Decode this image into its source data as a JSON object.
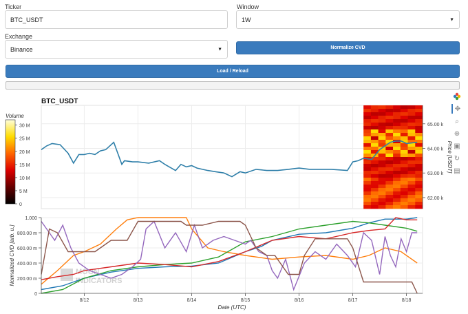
{
  "form": {
    "ticker_label": "Ticker",
    "ticker_value": "BTC_USDT",
    "window_label": "Window",
    "window_value": "1W",
    "exchange_label": "Exchange",
    "exchange_value": "Binance",
    "normalize_label": "Normalize CVD",
    "load_label": "Load / Reload",
    "progress": 0
  },
  "plot": {
    "title": "BTC_USDT",
    "colorbar": {
      "label": "Volume",
      "ticks": [
        "0",
        "5 M",
        "10 M",
        "15 M",
        "20 M",
        "25 M",
        "30 M"
      ]
    },
    "price_axis": {
      "label": "Price [USDT]",
      "ticks": [
        "62.00 k",
        "63.00 k",
        "64.00 k",
        "65.00 k"
      ]
    },
    "cvd_axis": {
      "label": "Normalized CVD [arb. u.]",
      "ticks": [
        "0",
        "200.00 m",
        "400.00 m",
        "600.00 m",
        "800.00 m",
        "1.000"
      ]
    },
    "x_axis": {
      "label": "Date (UTC)",
      "ticks": [
        "8/12",
        "8/13",
        "8/14",
        "8/15",
        "8/16",
        "8/17",
        "8/18"
      ]
    },
    "watermark_line1": "MOON",
    "watermark_line2": "INDICATORS"
  },
  "toolbar": {
    "items": [
      "bokeh-logo-icon",
      "pan-icon",
      "zoom-icon",
      "wheel-zoom-icon",
      "save-icon",
      "reset-icon",
      "hover-icon"
    ]
  },
  "colors": {
    "accent": "#3a7bbd",
    "price_line": "#2f7fa9",
    "cvd_series": [
      "#1f77b4",
      "#ff7f0e",
      "#2ca02c",
      "#d62728",
      "#9467bd",
      "#8c564b"
    ]
  },
  "chart_data": [
    {
      "type": "line",
      "name": "price",
      "x_unit": "day of August (UTC)",
      "xlim": [
        11.2,
        18.3
      ],
      "ylabel": "Price [USDT]",
      "ylim": [
        61.55,
        65.75
      ],
      "x": [
        11.2,
        11.3,
        11.4,
        11.55,
        11.7,
        11.8,
        11.9,
        12.0,
        12.1,
        12.2,
        12.3,
        12.4,
        12.55,
        12.7,
        12.75,
        12.9,
        13.0,
        13.2,
        13.4,
        13.5,
        13.7,
        13.8,
        13.9,
        14.0,
        14.1,
        14.3,
        14.45,
        14.6,
        14.75,
        14.9,
        15.0,
        15.2,
        15.4,
        15.6,
        15.8,
        16.0,
        16.2,
        16.4,
        16.6,
        16.9,
        17.0,
        17.1,
        17.2,
        17.35,
        17.5,
        17.6,
        17.7,
        17.8,
        17.9,
        18.0,
        18.2
      ],
      "y": [
        63.95,
        64.1,
        64.2,
        64.15,
        63.8,
        63.4,
        63.75,
        63.75,
        63.8,
        63.75,
        63.9,
        63.95,
        64.25,
        63.35,
        63.5,
        63.45,
        63.45,
        63.4,
        63.5,
        63.35,
        63.1,
        63.35,
        63.25,
        63.3,
        63.2,
        63.1,
        63.05,
        63.0,
        62.85,
        63.05,
        63.0,
        63.15,
        63.1,
        63.1,
        63.15,
        63.2,
        63.15,
        63.15,
        63.15,
        63.1,
        63.45,
        63.5,
        63.6,
        63.55,
        63.95,
        64.1,
        64.25,
        64.3,
        64.3,
        64.2,
        64.25
      ]
    },
    {
      "type": "heatmap",
      "name": "volume profile",
      "x_range": [
        17.2,
        18.3
      ],
      "y_range": [
        61.55,
        65.75
      ],
      "colorbar_range": [
        0,
        32000000
      ]
    },
    {
      "type": "line",
      "name": "normalized cvd",
      "x_unit": "day of August (UTC)",
      "xlim": [
        11.2,
        18.3
      ],
      "ylim": [
        0,
        1.0
      ],
      "series": [
        {
          "x": [
            11.2,
            11.6,
            12.0,
            12.5,
            13.0,
            13.5,
            14.0,
            14.5,
            15.0,
            15.3,
            15.5,
            16.0,
            16.5,
            17.0,
            17.3,
            17.6,
            18.0,
            18.2
          ],
          "values": [
            0.05,
            0.1,
            0.2,
            0.28,
            0.33,
            0.35,
            0.36,
            0.4,
            0.55,
            0.62,
            0.7,
            0.78,
            0.8,
            0.86,
            0.93,
            0.98,
            0.98,
            1.0
          ]
        },
        {
          "x": [
            11.2,
            11.5,
            11.8,
            12.0,
            12.3,
            12.6,
            12.8,
            13.0,
            13.2,
            13.6,
            13.9,
            14.0,
            14.3,
            14.6,
            15.0,
            15.5,
            16.0,
            16.5,
            17.0,
            17.3,
            17.6,
            17.9,
            18.2
          ],
          "values": [
            0.12,
            0.3,
            0.5,
            0.55,
            0.65,
            0.85,
            0.97,
            1.0,
            1.0,
            1.0,
            1.0,
            0.85,
            0.6,
            0.55,
            0.5,
            0.45,
            0.48,
            0.5,
            0.45,
            0.5,
            0.6,
            0.55,
            0.4
          ]
        },
        {
          "x": [
            11.2,
            11.6,
            12.0,
            12.5,
            13.0,
            13.5,
            14.0,
            14.5,
            15.0,
            15.5,
            16.0,
            16.5,
            17.0,
            17.3,
            17.6,
            18.0,
            18.2
          ],
          "values": [
            0.0,
            0.05,
            0.2,
            0.3,
            0.35,
            0.38,
            0.4,
            0.48,
            0.68,
            0.75,
            0.85,
            0.9,
            0.95,
            0.93,
            0.9,
            0.86,
            0.82
          ]
        },
        {
          "x": [
            11.2,
            11.5,
            11.8,
            12.0,
            12.5,
            13.0,
            13.5,
            14.0,
            14.5,
            15.0,
            15.5,
            16.0,
            16.5,
            17.0,
            17.3,
            17.6,
            17.8,
            18.0,
            18.2
          ],
          "values": [
            0.18,
            0.22,
            0.25,
            0.3,
            0.35,
            0.4,
            0.38,
            0.35,
            0.42,
            0.55,
            0.7,
            0.75,
            0.72,
            0.8,
            0.83,
            0.85,
            1.0,
            0.97,
            0.97
          ]
        },
        {
          "x": [
            11.2,
            11.3,
            11.45,
            11.6,
            11.75,
            11.9,
            12.1,
            12.3,
            12.5,
            12.7,
            12.9,
            13.05,
            13.15,
            13.3,
            13.5,
            13.7,
            13.9,
            14.05,
            14.2,
            14.4,
            14.6,
            14.8,
            15.0,
            15.1,
            15.25,
            15.4,
            15.5,
            15.6,
            15.75,
            15.9,
            16.1,
            16.3,
            16.5,
            16.7,
            16.9,
            17.05,
            17.2,
            17.35,
            17.5,
            17.6,
            17.7,
            17.8,
            17.9,
            18.0,
            18.1,
            18.2
          ],
          "values": [
            0.95,
            0.85,
            0.7,
            0.9,
            0.6,
            0.4,
            0.3,
            0.25,
            0.2,
            0.25,
            0.35,
            0.45,
            0.85,
            0.95,
            0.6,
            0.8,
            0.55,
            0.9,
            0.6,
            0.7,
            0.75,
            0.7,
            0.65,
            0.7,
            0.55,
            0.5,
            0.3,
            0.2,
            0.45,
            0.05,
            0.4,
            0.55,
            0.45,
            0.65,
            0.5,
            0.35,
            0.8,
            0.7,
            0.25,
            0.75,
            0.5,
            0.35,
            0.72,
            0.55,
            0.8,
            0.8
          ]
        },
        {
          "x": [
            11.2,
            11.35,
            11.5,
            11.7,
            12.0,
            12.2,
            12.5,
            12.8,
            13.0,
            13.3,
            13.6,
            13.8,
            13.9,
            14.0,
            14.2,
            14.5,
            14.7,
            14.9,
            15.0,
            15.2,
            15.4,
            15.55,
            15.8,
            16.0,
            16.1,
            16.3,
            16.6,
            16.9,
            17.0,
            17.2,
            17.6,
            17.8,
            18.1,
            18.2
          ],
          "values": [
            0.25,
            0.85,
            0.8,
            0.55,
            0.55,
            0.55,
            0.7,
            0.7,
            0.95,
            0.95,
            0.95,
            0.95,
            0.9,
            0.9,
            0.9,
            0.95,
            0.95,
            0.95,
            0.9,
            0.6,
            0.5,
            0.5,
            0.25,
            0.25,
            0.5,
            0.72,
            0.72,
            0.72,
            0.6,
            0.15,
            0.15,
            0.15,
            0.15,
            0.0
          ]
        }
      ]
    }
  ]
}
